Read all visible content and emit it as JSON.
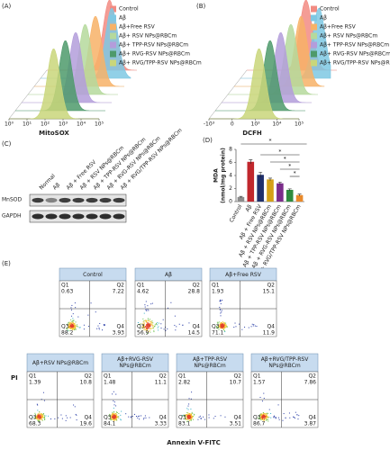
{
  "panel_a": {
    "label": "(A)",
    "x_label": "MitoSOX",
    "log_scale": true,
    "xlim": [
      1,
      100000
    ],
    "xticks": [
      {
        "value": 1,
        "label": "10⁰"
      },
      {
        "value": 10,
        "label": "10¹"
      },
      {
        "value": 100,
        "label": "10²"
      },
      {
        "value": 1000,
        "label": "10³"
      },
      {
        "value": 10000,
        "label": "10⁴"
      },
      {
        "value": 100000,
        "label": "10⁵"
      }
    ],
    "series": [
      {
        "name": "Control",
        "color": "#f28b82",
        "peak": 3000
      },
      {
        "name": "Aβ",
        "color": "#7ec8e3",
        "peak": 9000
      },
      {
        "name": "Aβ+Free RSV",
        "color": "#f7b267",
        "peak": 2500
      },
      {
        "name": "Aβ+ RSV NPs@RBCm",
        "color": "#b5d99c",
        "peak": 1500
      },
      {
        "name": "Aβ+ TPP-RSV NPs@RBCm",
        "color": "#b39ddb",
        "peak": 1000
      },
      {
        "name": "Aβ+ RVG-RSV NPs@RBCm",
        "color": "#4e9a6b",
        "peak": 600
      },
      {
        "name": "Aβ+ RVG/TPP-RSV NPs@RBCm",
        "color": "#c9d67a",
        "peak": 300
      }
    ]
  },
  "panel_b": {
    "label": "(B)",
    "x_label": "DCFH",
    "scale": "biexponential",
    "xlim": [
      -1000,
      100000
    ],
    "xticks": [
      {
        "value": -1000,
        "label": "-10³"
      },
      0,
      {
        "value": 1000,
        "label": "10³"
      },
      {
        "value": 10000,
        "label": "10⁴"
      },
      {
        "value": 100000,
        "label": "10⁵"
      }
    ],
    "series": [
      {
        "name": "Control",
        "color": "#f28b82",
        "peak": 4000
      },
      {
        "name": "Aβ",
        "color": "#7ec8e3",
        "peak": 30000
      },
      {
        "name": "Aβ+Free RSV",
        "color": "#f7b267",
        "peak": 9000
      },
      {
        "name": "Aβ+ RSV NPs@RBCm",
        "color": "#b5d99c",
        "peak": 6000
      },
      {
        "name": "Aβ+ TPP-RSV NPs@RBCm",
        "color": "#b39ddb",
        "peak": 4000
      },
      {
        "name": "Aβ+ RVG-RSV NPs@RBCm",
        "color": "#4e9a6b",
        "peak": 2500
      },
      {
        "name": "Aβ+ RVG/TPP-RSV NPs@RBCm",
        "color": "#c9d67a",
        "peak": 1500
      }
    ]
  },
  "panel_c": {
    "label": "(C)",
    "lanes": [
      "Normal",
      "Aβ",
      "Aβ + Free RSV",
      "Aβ + RSV NPs@RBCm",
      "Aβ + TPP-RSV NPs@RBCm",
      "Aβ + RVG-RSV NPs@RBCm",
      "Aβ + RVG/TPP-RSV NPs@RBCm"
    ],
    "rows": [
      "MnSOD",
      "GAPDH"
    ]
  },
  "panel_d": {
    "label": "(D)",
    "type": "bar",
    "y_label": "MDA",
    "y_unit": "(nmol/mg protein)",
    "categories": [
      "Control",
      "Aβ",
      "Aβ + Free RSV",
      "Aβ + RSV NPs@RBCm",
      "Aβ + TPP-RSV NPs@RBCm",
      "Aβ + RVG-RSV NPs@RBCm",
      "Aβ + RVG/TPP-RSV NPs@RBCm"
    ],
    "values": [
      0.7,
      6.1,
      4.1,
      3.4,
      2.8,
      1.8,
      1.0
    ],
    "errors": [
      0.1,
      0.3,
      0.4,
      0.2,
      0.2,
      0.15,
      0.15
    ],
    "colors": [
      "#8c8c8c",
      "#c0272d",
      "#1f2f6b",
      "#d4a017",
      "#7b2d8b",
      "#2e8b3e",
      "#e8892b"
    ],
    "ylim": [
      0,
      8
    ],
    "yticks": [
      0,
      2,
      4,
      6,
      8
    ],
    "significance": [
      "*",
      "*",
      "*",
      "*",
      "*"
    ]
  },
  "panel_e": {
    "label": "(E)",
    "y_label": "PI",
    "x_label": "Annexin V-FITC",
    "plots": [
      {
        "title": "Control",
        "quadrants": [
          {
            "name": "Q1",
            "value": 0.63
          },
          {
            "name": "Q2",
            "value": 7.22
          },
          {
            "name": "Q3",
            "value": 88.2
          },
          {
            "name": "Q4",
            "value": 3.93
          }
        ]
      },
      {
        "title": "Aβ",
        "quadrants": [
          {
            "name": "Q1",
            "value": 4.62
          },
          {
            "name": "Q2",
            "value": 28.8
          },
          {
            "name": "Q3",
            "value": 56.9
          },
          {
            "name": "Q4",
            "value": 14.5
          }
        ]
      },
      {
        "title": "Aβ+Free RSV",
        "quadrants": [
          {
            "name": "Q1",
            "value": 1.93
          },
          {
            "name": "Q2",
            "value": 15.1
          },
          {
            "name": "Q3",
            "value": 71.1
          },
          {
            "name": "Q4",
            "value": 11.9
          }
        ]
      },
      {
        "title": "Aβ+RSV NPs@RBCm",
        "quadrants": [
          {
            "name": "Q1",
            "value": 1.39
          },
          {
            "name": "Q2",
            "value": 10.8
          },
          {
            "name": "Q3",
            "value": 68.3
          },
          {
            "name": "Q4",
            "value": 19.6
          }
        ]
      },
      {
        "title": "Aβ+RVG-RSV NPs@RBCm",
        "quadrants": [
          {
            "name": "Q1",
            "value": 1.48
          },
          {
            "name": "Q2",
            "value": 11.1
          },
          {
            "name": "Q3",
            "value": 84.1
          },
          {
            "name": "Q4",
            "value": 3.33
          }
        ]
      },
      {
        "title": "Aβ+TPP-RSV NPs@RBCm",
        "quadrants": [
          {
            "name": "Q1",
            "value": 2.82
          },
          {
            "name": "Q2",
            "value": 10.7
          },
          {
            "name": "Q3",
            "value": 83.1
          },
          {
            "name": "Q4",
            "value": 3.51
          }
        ]
      },
      {
        "title": "Aβ+RVG/TPP-RSV NPs@RBCm",
        "quadrants": [
          {
            "name": "Q1",
            "value": 1.57
          },
          {
            "name": "Q2",
            "value": 7.86
          },
          {
            "name": "Q3",
            "value": 86.7
          },
          {
            "name": "Q4",
            "value": 3.87
          }
        ]
      }
    ]
  }
}
